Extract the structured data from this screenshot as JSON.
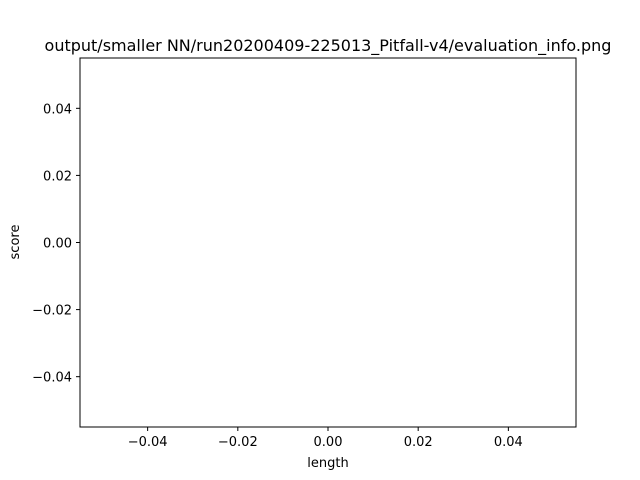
{
  "chart_data": {
    "type": "line",
    "title": "output/smaller NN/run20200409-225013_Pitfall-v4/evaluation_info.png",
    "xlabel": "length",
    "ylabel": "score",
    "xlim": [
      -0.055,
      0.055
    ],
    "ylim": [
      -0.055,
      0.055
    ],
    "x_ticks": [
      {
        "value": -0.04,
        "label": "−0.04"
      },
      {
        "value": -0.02,
        "label": "−0.02"
      },
      {
        "value": 0.0,
        "label": "0.00"
      },
      {
        "value": 0.02,
        "label": "0.02"
      },
      {
        "value": 0.04,
        "label": "0.04"
      }
    ],
    "y_ticks": [
      {
        "value": 0.04,
        "label": "0.04"
      },
      {
        "value": 0.02,
        "label": "0.02"
      },
      {
        "value": 0.0,
        "label": "0.00"
      },
      {
        "value": -0.02,
        "label": "−0.02"
      },
      {
        "value": -0.04,
        "label": "−0.04"
      }
    ],
    "series": [
      {
        "x": [],
        "y": []
      }
    ],
    "grid": false,
    "legend": "none"
  }
}
